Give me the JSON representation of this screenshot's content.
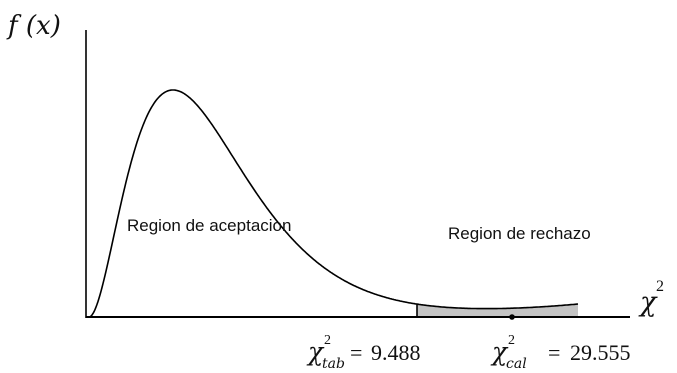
{
  "y_axis_label": "f (x)",
  "x_axis_label": {
    "symbol": "χ",
    "superscript": "2"
  },
  "regions": {
    "acceptance": "Region de aceptacion",
    "rejection": "Region de rechazo"
  },
  "critical_value": {
    "symbol": "χ",
    "superscript": "2",
    "subscript": "tab",
    "equals": "=",
    "value": "9.488"
  },
  "calculated_value": {
    "symbol": "χ",
    "superscript": "2",
    "subscript": "cal",
    "equals": "=",
    "value": "29.555"
  },
  "colors": {
    "curve": "#000000",
    "axes": "#000000",
    "rejection_fill": "#c4c4c4",
    "text": "#111111"
  }
}
